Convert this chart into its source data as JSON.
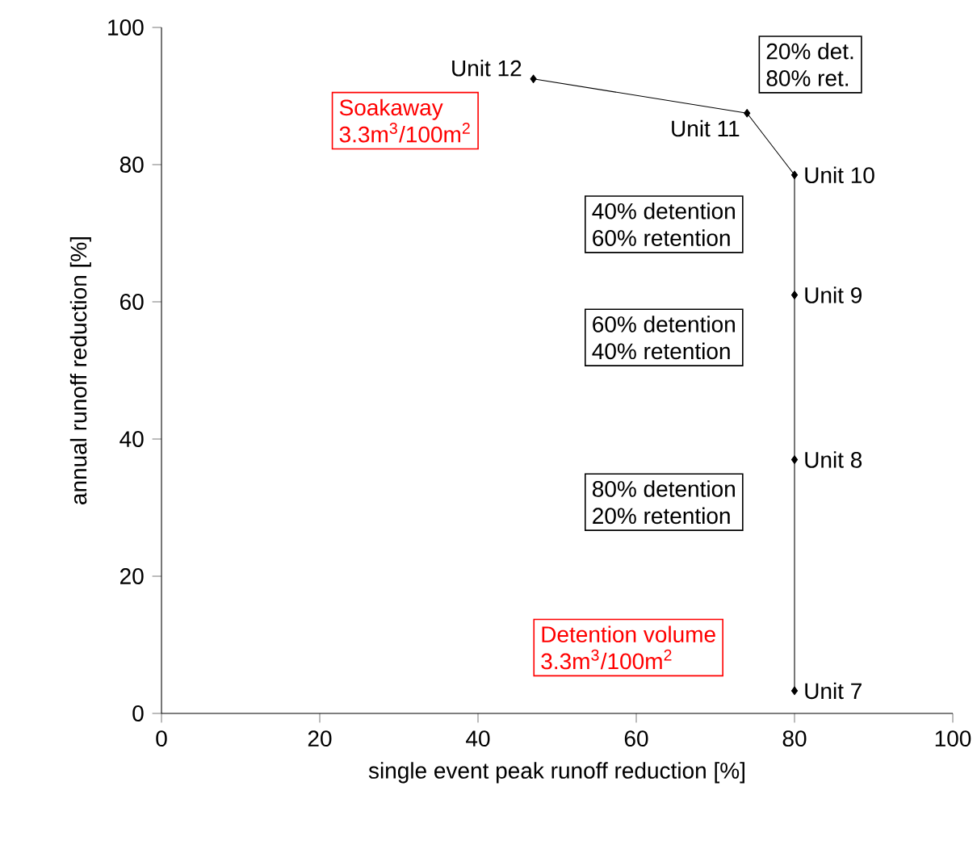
{
  "chart_data": {
    "type": "line",
    "xlabel": "single event peak runoff reduction  [%]",
    "ylabel": "annual runoff reduction [%]",
    "x": [
      47,
      74,
      80,
      80,
      80,
      80
    ],
    "series": [
      {
        "color": "#000000",
        "values": [
          92.5,
          87.5,
          78.5,
          61,
          37,
          3.3
        ]
      }
    ],
    "xlim": [
      0,
      100
    ],
    "ylim": [
      0,
      100
    ],
    "xticks": [
      0,
      20,
      40,
      60,
      80,
      100
    ],
    "yticks": [
      0,
      20,
      40,
      60,
      80,
      100
    ],
    "marker": "diamond",
    "line_style": "solid",
    "grid": false,
    "annotations": [
      {
        "text": "Unit 12",
        "x": 47,
        "y": 92.5
      },
      {
        "text": "Unit 11",
        "x": 74,
        "y": 87.5
      },
      {
        "text": "Unit 10",
        "x": 80,
        "y": 78.5
      },
      {
        "text": "Unit 9",
        "x": 80,
        "y": 61
      },
      {
        "text": "Unit 8",
        "x": 80,
        "y": 37
      },
      {
        "text": "Unit 7",
        "x": 80,
        "y": 3.3
      },
      "20% det.",
      "80% ret.",
      "40%  detention",
      "60%  retention",
      "60%  detention",
      "40%  retention",
      "80%  detention",
      "20%  retention",
      "Soakaway",
      "3.3m$^{3}$/100m$^{2}$",
      "Detention volume",
      "3.3m$^{3}$/100m$^{2}$"
    ]
  }
}
